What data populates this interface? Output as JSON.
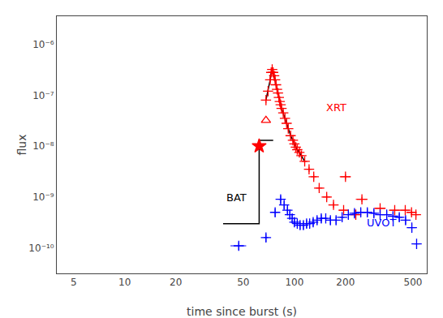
{
  "chart_data": {
    "type": "line",
    "xlabel": "time since burst (s)",
    "ylabel": "flux",
    "log": true,
    "grid": false,
    "background_color": "#ffffff",
    "xlim": [
      3.981071705534972,
      602.5595860743578
    ],
    "ylim": [
      3.1622776601683794e-11,
      3.548133892335754e-06
    ],
    "xticks": [
      5,
      10,
      20,
      50,
      100,
      200,
      500
    ],
    "yticks": [
      {
        "value": 1e-10,
        "label": "10⁻¹⁰"
      },
      {
        "value": 1e-09,
        "label": "10⁻⁹"
      },
      {
        "value": 1e-08,
        "label": "10⁻⁸"
      },
      {
        "value": 1e-07,
        "label": "10⁻⁷"
      },
      {
        "value": 1e-06,
        "label": "10⁻⁶"
      }
    ],
    "series": [
      {
        "type": "line",
        "color": "black",
        "line_style": "solid",
        "x": [
          38,
          62,
          62,
          75
        ],
        "values": [
          3e-10,
          3e-10,
          1.3e-08,
          1.3e-08
        ]
      },
      {
        "type": "line",
        "color": "black",
        "line_style": "solid",
        "x": [
          68,
          70,
          72,
          73,
          74,
          75,
          76,
          77,
          78,
          79,
          80,
          81,
          82,
          83,
          84,
          86,
          88,
          90,
          92,
          95,
          98,
          100,
          102,
          104,
          107,
          110,
          115
        ],
        "values": [
          8e-08,
          1.2e-07,
          2e-07,
          2.8e-07,
          3.2e-07,
          2.8e-07,
          2.4e-07,
          2e-07,
          1.6e-07,
          1.3e-07,
          1.1e-07,
          9e-08,
          7.5e-08,
          6.5e-08,
          5.5e-08,
          4.5e-08,
          3.5e-08,
          2.8e-08,
          2.2e-08,
          1.6e-08,
          1.3e-08,
          1.1e-08,
          9.5e-09,
          8.5e-09,
          7.5e-09,
          6.5e-09,
          5e-09
        ]
      },
      {
        "type": "scatter",
        "color": "red",
        "marker": "plus",
        "x": [
          68,
          70,
          72,
          73,
          74,
          75,
          76,
          77,
          78,
          79,
          80,
          81,
          82,
          83,
          84,
          86,
          88,
          90,
          92,
          95,
          98,
          100,
          102,
          104,
          107,
          110,
          115,
          122,
          130,
          140,
          155,
          170,
          195,
          230
        ],
        "values": [
          8e-08,
          1.2e-07,
          2e-07,
          2.8e-07,
          3.2e-07,
          2.8e-07,
          2.4e-07,
          2e-07,
          1.6e-07,
          1.3e-07,
          1.1e-07,
          9e-08,
          7.5e-08,
          6.5e-08,
          5.5e-08,
          4.5e-08,
          3.5e-08,
          2.8e-08,
          2.2e-08,
          1.6e-08,
          1.3e-08,
          1.1e-08,
          9.5e-09,
          8.5e-09,
          7.5e-09,
          6.5e-09,
          5e-09,
          3.5e-09,
          2.5e-09,
          1.5e-09,
          1e-09,
          7e-10,
          5.5e-10,
          4.5e-10
        ],
        "xerr": [
          1,
          1,
          0.8,
          0.8,
          0.8,
          0.8,
          0.8,
          0.8,
          0.8,
          0.8,
          0.8,
          0.8,
          1,
          1,
          1,
          1,
          1,
          1,
          1.5,
          1.5,
          2,
          2,
          2,
          2,
          2.5,
          3,
          4,
          4,
          5,
          6,
          8,
          10,
          12,
          18
        ],
        "yerr": [
          9.6e-09,
          1.44e-08,
          2.4e-08,
          3.36e-08,
          3.84e-08,
          3.36e-08,
          2.88e-08,
          2.4e-08,
          1.92e-08,
          1.56e-08,
          1.32e-08,
          1.08e-08,
          9e-09,
          7.8e-09,
          6.6e-09,
          5.4e-09,
          4.2e-09,
          3.36e-09,
          2.64e-09,
          1.92e-09,
          1.56e-09,
          1.32e-09,
          1.14e-09,
          1.02e-09,
          9e-10,
          7.8e-10,
          6e-10,
          4.2e-10,
          3e-10,
          1.8e-10,
          1.2e-10,
          8.4e-11,
          6.6e-11,
          5.4e-11
        ]
      },
      {
        "type": "scatter",
        "color": "red",
        "marker": "plus",
        "x": [
          200,
          250,
          320,
          390,
          450,
          490,
          520
        ],
        "values": [
          2.5e-09,
          9e-10,
          6e-10,
          5.5e-10,
          5.5e-10,
          5e-10,
          4.5e-10
        ],
        "xerr": [
          15,
          20,
          25,
          30,
          30,
          25,
          20
        ],
        "yerr": [
          3e-10,
          1.08e-10,
          7.2e-11,
          6.6e-11,
          6.6e-11,
          6e-11,
          5.4e-11
        ]
      },
      {
        "type": "scatter",
        "color": "red",
        "marker": "star",
        "x": [
          62
        ],
        "values": [
          1e-08
        ]
      },
      {
        "type": "scatter",
        "color": "red",
        "marker": "triangle-open",
        "x": [
          68
        ],
        "values": [
          3.2e-08
        ]
      },
      {
        "type": "scatter",
        "color": "blue",
        "marker": "plus",
        "x": [
          47,
          68,
          77,
          83,
          87,
          91,
          94,
          97,
          100,
          104,
          108,
          113,
          118,
          123,
          129,
          136,
          144,
          153,
          163,
          176,
          191,
          208,
          226,
          246,
          269,
          294,
          320,
          350,
          381,
          415,
          452,
          492,
          525
        ],
        "values": [
          1.1e-10,
          1.6e-10,
          5e-10,
          9e-10,
          7e-10,
          5.5e-10,
          4.5e-10,
          3.8e-10,
          3.2e-10,
          3e-10,
          2.8e-10,
          2.8e-10,
          3e-10,
          3e-10,
          3.2e-10,
          3.5e-10,
          3.8e-10,
          3.8e-10,
          3.5e-10,
          3.5e-10,
          4e-10,
          4.5e-10,
          4.8e-10,
          5e-10,
          5e-10,
          4.8e-10,
          4.5e-10,
          4.5e-10,
          4.2e-10,
          4e-10,
          3.5e-10,
          2.5e-10,
          1.2e-10
        ],
        "xerr": [
          5,
          2,
          2,
          2,
          2,
          1.5,
          1.5,
          1.5,
          1.5,
          2,
          2,
          2.5,
          2.5,
          3,
          3,
          3.5,
          4,
          4,
          5,
          5,
          6,
          7,
          8,
          9,
          10,
          12,
          13,
          15,
          17,
          19,
          22,
          25,
          20
        ],
        "yerr": [
          1.98e-11,
          2.88e-11,
          9e-11,
          1.62e-10,
          1.26e-10,
          9.9e-11,
          8.1e-11,
          6.84e-11,
          5.76e-11,
          5.4e-11,
          5.04e-11,
          5.04e-11,
          5.4e-11,
          5.4e-11,
          5.76e-11,
          6.3e-11,
          6.84e-11,
          6.84e-11,
          6.3e-11,
          6.3e-11,
          7.2e-11,
          8.1e-11,
          8.64e-11,
          9e-11,
          9e-11,
          8.64e-11,
          8.1e-11,
          8.1e-11,
          7.56e-11,
          7.2e-11,
          6.3e-11,
          4.5e-11,
          2.16e-11
        ]
      }
    ],
    "annotations": [
      {
        "text": "BAT",
        "x": 39,
        "y": 7e-10,
        "color": "black"
      },
      {
        "text": "XRT",
        "x": 150,
        "y": 4e-08,
        "color": "red"
      },
      {
        "text": "UVOT",
        "x": 260,
        "y": 2.2e-10,
        "color": "blue"
      }
    ]
  }
}
